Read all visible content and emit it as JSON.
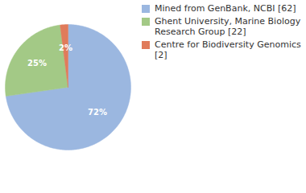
{
  "chart_data": {
    "type": "pie",
    "categories": [
      "Mined from GenBank, NCBI [62]",
      "Ghent University, Marine Biology Research Group [22]",
      "Centre for Biodiversity Genomics [2]"
    ],
    "values": [
      72,
      25,
      2
    ],
    "colors": [
      "#9bb7e0",
      "#a3c986",
      "#e07b5b"
    ],
    "data_labels": true,
    "value_labels": [
      "72%",
      "25%",
      "2%"
    ],
    "legend": "right"
  }
}
